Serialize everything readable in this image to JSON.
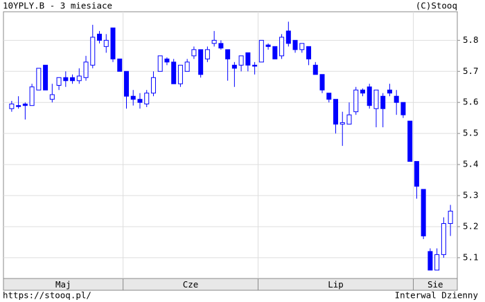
{
  "chart_data": {
    "type": "candlestick",
    "title": "10YPLY.B - 3 miesiace",
    "source": "(C)Stooq",
    "color": "#0000ff",
    "grid": true,
    "ylim": [
      5.033,
      5.892
    ],
    "yticks": [
      5.1,
      5.2,
      5.3,
      5.4,
      5.5,
      5.6,
      5.7,
      5.8
    ],
    "months": [
      {
        "label": "Maj",
        "days": 17
      },
      {
        "label": "Cze",
        "days": 20
      },
      {
        "label": "Lip",
        "days": 23
      },
      {
        "label": "Sie",
        "days": 6
      }
    ],
    "open": [
      5.58,
      5.59,
      5.595,
      5.59,
      5.64,
      5.72,
      5.61,
      5.655,
      5.68,
      5.68,
      5.67,
      5.68,
      5.72,
      5.82,
      5.78,
      5.84,
      5.74,
      5.7,
      5.62,
      5.61,
      5.595,
      5.63,
      5.7,
      5.74,
      5.73,
      5.66,
      5.7,
      5.75,
      5.77,
      5.74,
      5.79,
      5.79,
      5.77,
      5.72,
      5.72,
      5.76,
      5.72,
      5.73,
      5.785,
      5.78,
      5.75,
      5.83,
      5.8,
      5.77,
      5.78,
      5.72,
      5.69,
      5.63,
      5.61,
      5.53,
      5.53,
      5.57,
      5.64,
      5.65,
      5.58,
      5.62,
      5.64,
      5.62,
      5.6,
      5.54,
      5.41,
      5.32,
      5.12,
      5.06,
      5.11,
      5.21
    ],
    "high": [
      5.605,
      5.62,
      5.6,
      5.66,
      5.71,
      5.72,
      5.66,
      5.68,
      5.7,
      5.69,
      5.71,
      5.75,
      5.85,
      5.83,
      5.82,
      5.84,
      5.74,
      5.7,
      5.64,
      5.63,
      5.64,
      5.7,
      5.75,
      5.745,
      5.74,
      5.72,
      5.74,
      5.78,
      5.77,
      5.78,
      5.83,
      5.8,
      5.77,
      5.73,
      5.75,
      5.76,
      5.73,
      5.8,
      5.79,
      5.78,
      5.82,
      5.86,
      5.8,
      5.79,
      5.78,
      5.73,
      5.69,
      5.63,
      5.61,
      5.57,
      5.6,
      5.65,
      5.645,
      5.66,
      5.64,
      5.63,
      5.66,
      5.64,
      5.6,
      5.54,
      5.41,
      5.32,
      5.13,
      5.13,
      5.23,
      5.27
    ],
    "low": [
      5.57,
      5.58,
      5.545,
      5.59,
      5.64,
      5.64,
      5.6,
      5.64,
      5.65,
      5.66,
      5.66,
      5.67,
      5.71,
      5.79,
      5.76,
      5.73,
      5.7,
      5.58,
      5.59,
      5.58,
      5.585,
      5.62,
      5.7,
      5.72,
      5.66,
      5.65,
      5.7,
      5.74,
      5.68,
      5.73,
      5.78,
      5.77,
      5.67,
      5.65,
      5.7,
      5.7,
      5.69,
      5.73,
      5.77,
      5.74,
      5.74,
      5.78,
      5.76,
      5.76,
      5.72,
      5.69,
      5.63,
      5.6,
      5.5,
      5.46,
      5.53,
      5.56,
      5.62,
      5.58,
      5.52,
      5.52,
      5.62,
      5.56,
      5.55,
      5.41,
      5.29,
      5.16,
      5.06,
      5.06,
      5.1,
      5.17
    ],
    "close": [
      5.595,
      5.59,
      5.59,
      5.65,
      5.71,
      5.64,
      5.625,
      5.68,
      5.67,
      5.67,
      5.685,
      5.73,
      5.81,
      5.8,
      5.8,
      5.74,
      5.7,
      5.62,
      5.61,
      5.6,
      5.63,
      5.68,
      5.75,
      5.73,
      5.66,
      5.72,
      5.73,
      5.77,
      5.69,
      5.77,
      5.8,
      5.775,
      5.74,
      5.71,
      5.75,
      5.72,
      5.72,
      5.8,
      5.78,
      5.74,
      5.81,
      5.79,
      5.77,
      5.79,
      5.74,
      5.69,
      5.64,
      5.61,
      5.53,
      5.535,
      5.56,
      5.64,
      5.63,
      5.59,
      5.64,
      5.58,
      5.63,
      5.6,
      5.56,
      5.41,
      5.33,
      5.17,
      5.06,
      5.11,
      5.21,
      5.25
    ]
  },
  "footer": {
    "url": "https://stooq.pl/",
    "interval": "Interwal Dzienny"
  }
}
